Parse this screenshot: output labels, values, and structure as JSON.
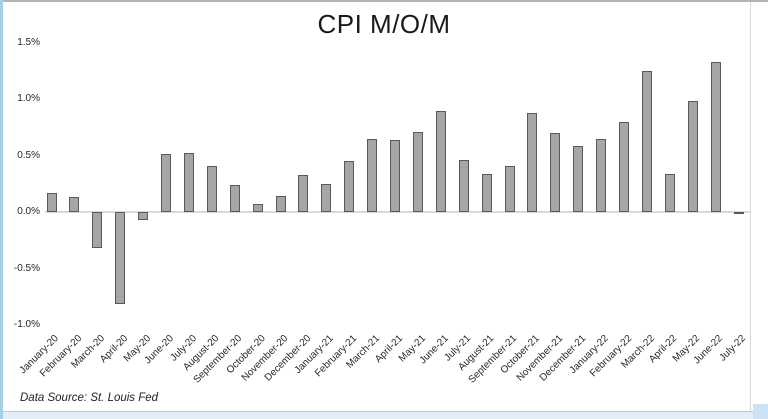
{
  "chart_data": {
    "type": "bar",
    "title": "CPI M/O/M",
    "categories": [
      "January-20",
      "February-20",
      "March-20",
      "April-20",
      "May-20",
      "June-20",
      "July-20",
      "August-20",
      "September-20",
      "October-20",
      "November-20",
      "December-20",
      "January-21",
      "February-21",
      "March-21",
      "April-21",
      "May-21",
      "June-21",
      "July-21",
      "August-21",
      "September-21",
      "October-21",
      "November-21",
      "December-21",
      "January-22",
      "February-22",
      "March-22",
      "April-22",
      "May-22",
      "June-22",
      "July-22"
    ],
    "values": [
      0.17,
      0.13,
      -0.32,
      -0.81,
      -0.07,
      0.51,
      0.52,
      0.41,
      0.24,
      0.07,
      0.14,
      0.33,
      0.25,
      0.45,
      0.65,
      0.64,
      0.71,
      0.89,
      0.46,
      0.34,
      0.41,
      0.88,
      0.7,
      0.58,
      0.65,
      0.8,
      1.25,
      0.34,
      0.98,
      1.33,
      -0.02
    ],
    "unit": "%",
    "xlabel": "",
    "ylabel": "",
    "ylim": [
      -1.0,
      1.5
    ],
    "ytick_labels": [
      "1.5%",
      "1.0%",
      "0.5%",
      "0.0%",
      "-0.5%",
      "-1.0%"
    ],
    "ytick_values": [
      1.5,
      1.0,
      0.5,
      0.0,
      -0.5,
      -1.0
    ],
    "grid": "off",
    "legend": "none",
    "style": {
      "bar_fill": "#a6a6a6",
      "bar_border": "#595959",
      "axis_line": "#d9d9d9",
      "frame_blue": "#a5cfe4",
      "frame_grey": "#b3b3b3",
      "strip_blue": "#e4eef8",
      "strip_accent": "#cde2f5"
    }
  },
  "footer": {
    "data_source": "Data Source: St. Louis Fed"
  }
}
